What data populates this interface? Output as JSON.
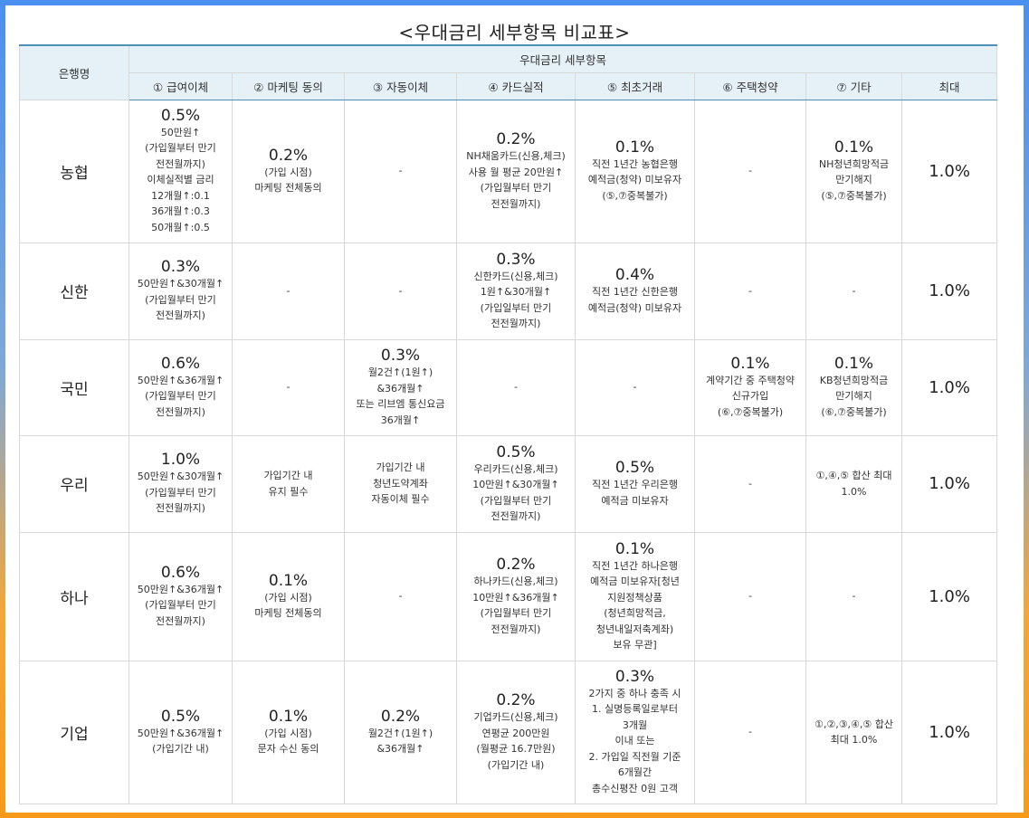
{
  "title": "<우대금리 세부항목 비교표>",
  "headers": {
    "bank": "은행명",
    "group": "우대금리 세부항목",
    "cols": [
      "① 급여이체",
      "② 마케팅 동의",
      "③ 자동이체",
      "④ 카드실적",
      "⑤ 최초거래",
      "⑥ 주택청약",
      "⑦ 기타",
      "최대"
    ]
  },
  "rows": [
    {
      "bank": "농협",
      "cells": [
        {
          "pct": "0.5%",
          "desc": "50만원↑\n(가입월부터 만기\n전전월까지)\n이체실적별 금리\n12개월↑:0.1\n36개월↑:0.3\n50개월↑:0.5"
        },
        {
          "pct": "0.2%",
          "desc": "(가입 시점)\n마케팅 전체동의"
        },
        {
          "pct": "",
          "desc": "-"
        },
        {
          "pct": "0.2%",
          "desc": "NH채움카드(신용,체크)\n사용 월 평균 20만원↑\n(가입월부터 만기\n전전월까지)"
        },
        {
          "pct": "0.1%",
          "desc": "직전 1년간 농협은행\n예적금(청약) 미보유자\n(⑤,⑦중복불가)"
        },
        {
          "pct": "",
          "desc": "-"
        },
        {
          "pct": "0.1%",
          "desc": "NH청년희망적금\n만기해지\n(⑤,⑦중복불가)"
        }
      ],
      "max": "1.0%"
    },
    {
      "bank": "신한",
      "cells": [
        {
          "pct": "0.3%",
          "desc": "50만원↑&30개월↑\n(가입월부터 만기\n전전월까지)"
        },
        {
          "pct": "",
          "desc": "-"
        },
        {
          "pct": "",
          "desc": "-"
        },
        {
          "pct": "0.3%",
          "desc": "신한카드(신용,체크)\n1원↑&30개월↑\n(가입일부터 만기\n전전월까지)"
        },
        {
          "pct": "0.4%",
          "desc": "직전 1년간 신한은행\n예적금(청약) 미보유자"
        },
        {
          "pct": "",
          "desc": "-"
        },
        {
          "pct": "",
          "desc": "-"
        }
      ],
      "max": "1.0%"
    },
    {
      "bank": "국민",
      "cells": [
        {
          "pct": "0.6%",
          "desc": "50만원↑&36개월↑\n(가입월부터 만기\n전전월까지)"
        },
        {
          "pct": "",
          "desc": "-"
        },
        {
          "pct": "0.3%",
          "desc": "월2건↑(1원↑)\n&36개월↑\n또는 리브엠 통신요금\n36개월↑"
        },
        {
          "pct": "",
          "desc": "-"
        },
        {
          "pct": "",
          "desc": "-"
        },
        {
          "pct": "0.1%",
          "desc": "계약기간 중 주택청약\n신규가입\n(⑥,⑦중복불가)"
        },
        {
          "pct": "0.1%",
          "desc": "KB청년희망적금\n만기해지\n(⑥,⑦중복불가)"
        }
      ],
      "max": "1.0%"
    },
    {
      "bank": "우리",
      "cells": [
        {
          "pct": "1.0%",
          "desc": "50만원↑&30개월↑\n(가입월부터 만기\n전전월까지)"
        },
        {
          "pct": "",
          "desc": "가입기간 내\n유지 필수"
        },
        {
          "pct": "",
          "desc": "가입기간 내\n청년도약계좌\n자동이체 필수"
        },
        {
          "pct": "0.5%",
          "desc": "우리카드(신용,체크)\n10만원↑&30개월↑\n(가입월부터 만기\n전전월까지)"
        },
        {
          "pct": "0.5%",
          "desc": "직전 1년간 우리은행\n예적금 미보유자"
        },
        {
          "pct": "",
          "desc": "-"
        },
        {
          "pct": "",
          "desc": "①,④,⑤ 합산 최대\n1.0%"
        }
      ],
      "max": "1.0%"
    },
    {
      "bank": "하나",
      "cells": [
        {
          "pct": "0.6%",
          "desc": "50만원↑&36개월↑\n(가입월부터 만기\n전전월까지)"
        },
        {
          "pct": "0.1%",
          "desc": "(가입 시점)\n마케팅 전체동의"
        },
        {
          "pct": "",
          "desc": "-"
        },
        {
          "pct": "0.2%",
          "desc": "하나카드(신용,체크)\n10만원↑&36개월↑\n(가입월부터 만기\n전전월까지)"
        },
        {
          "pct": "0.1%",
          "desc": "직전 1년간 하나은행\n예적금 미보유자[청년\n지원정책상품\n(청년희망적금,\n청년내일저축계좌)\n보유 무관]"
        },
        {
          "pct": "",
          "desc": "-"
        },
        {
          "pct": "",
          "desc": "-"
        }
      ],
      "max": "1.0%"
    },
    {
      "bank": "기업",
      "cells": [
        {
          "pct": "0.5%",
          "desc": "50만원↑&36개월↑\n(가입기간 내)"
        },
        {
          "pct": "0.1%",
          "desc": "(가입 시점)\n문자 수신 동의"
        },
        {
          "pct": "0.2%",
          "desc": "월2건↑(1원↑)\n&36개월↑"
        },
        {
          "pct": "0.2%",
          "desc": "기업카드(신용,체크)\n연평균 200만원\n(월평균 16.7만원)\n(가입기간 내)"
        },
        {
          "pct": "0.3%",
          "desc": "2가지 중 하나 충족 시\n1. 실명등록일로부터\n3개월\n이내 또는\n2. 가입일 직전월 기준\n6개월간\n총수신평잔 0원 고객"
        },
        {
          "pct": "",
          "desc": "-"
        },
        {
          "pct": "",
          "desc": "①,②,③,④,⑤ 합산\n최대 1.0%"
        }
      ],
      "max": "1.0%"
    }
  ]
}
